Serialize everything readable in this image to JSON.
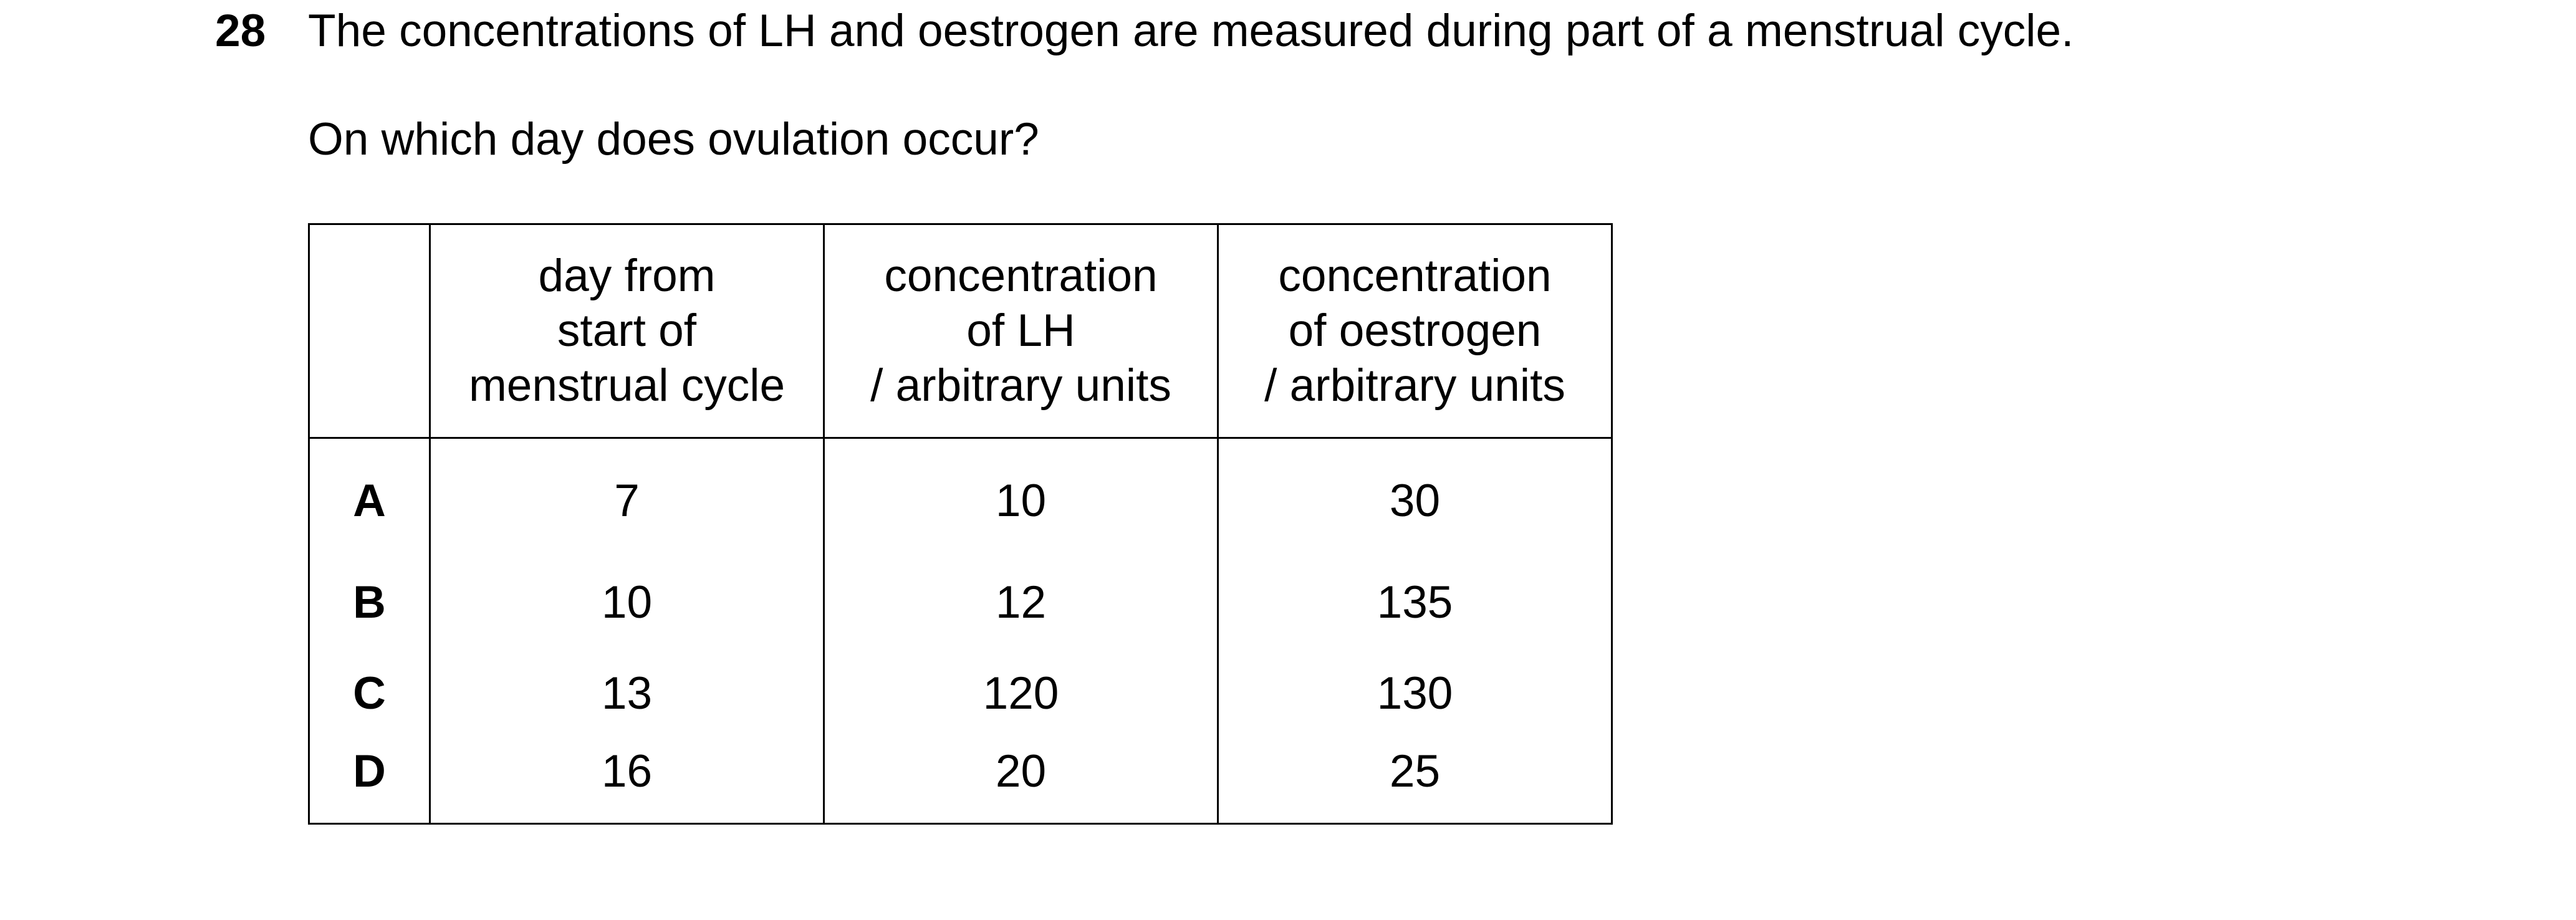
{
  "question": {
    "number": "28",
    "stem": "The concentrations of LH and oestrogen are measured during part of a menstrual cycle.",
    "prompt": "On which day does ovulation occur?"
  },
  "table": {
    "headers": [
      "",
      "day from\nstart of\nmenstrual cycle",
      "concentration\nof LH\n/ arbitrary units",
      "concentration\nof oestrogen\n/ arbitrary units"
    ],
    "rows": [
      {
        "option": "A",
        "day": "7",
        "lh": "10",
        "oestrogen": "30"
      },
      {
        "option": "B",
        "day": "10",
        "lh": "12",
        "oestrogen": "135"
      },
      {
        "option": "C",
        "day": "13",
        "lh": "120",
        "oestrogen": "130"
      },
      {
        "option": "D",
        "day": "16",
        "lh": "20",
        "oestrogen": "25"
      }
    ]
  }
}
